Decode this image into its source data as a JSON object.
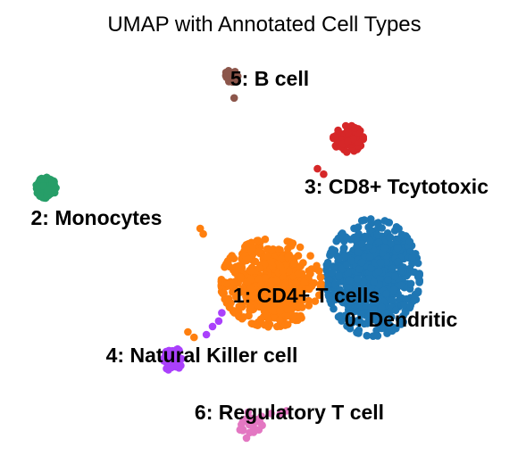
{
  "chart_data": {
    "type": "scatter",
    "title": "UMAP with Annotated Cell Types",
    "xlabel": "",
    "ylabel": "",
    "grid": false,
    "axes_visible": false,
    "legend": "on data",
    "xlim": [
      -6.0,
      10.5
    ],
    "ylim": [
      -4.5,
      10.0
    ],
    "clusters": [
      {
        "id": "0",
        "label": "0: Dendritic",
        "color": "#1f77b4",
        "center": [
          5.8,
          1.7
        ],
        "spread": [
          1.4,
          2.0
        ],
        "count": 700
      },
      {
        "id": "1",
        "label": "1: CD4+ T cells",
        "color": "#ff7f0e",
        "center": [
          2.5,
          1.5
        ],
        "spread": [
          1.5,
          1.5
        ],
        "count": 600
      },
      {
        "id": "2",
        "label": "2: Monocytes",
        "color": "#279e68",
        "center": [
          -4.8,
          5.0
        ],
        "spread": [
          0.3,
          0.35
        ],
        "count": 150
      },
      {
        "id": "3",
        "label": "3: CD8+ Tcytotoxic",
        "color": "#d62728",
        "center": [
          5.0,
          6.8
        ],
        "spread": [
          0.45,
          0.45
        ],
        "count": 110
      },
      {
        "id": "4",
        "label": "4: Natural Killer cell",
        "color": "#aa40fc",
        "center": [
          -0.7,
          -1.3
        ],
        "spread": [
          0.3,
          0.4
        ],
        "count": 80
      },
      {
        "id": "5",
        "label": "5: B cell",
        "color": "#8c564b",
        "center": [
          1.2,
          9.1
        ],
        "spread": [
          0.2,
          0.2
        ],
        "count": 30
      },
      {
        "id": "6",
        "label": "6: Regulatory T cell",
        "color": "#e377c2",
        "center": [
          1.8,
          -3.6
        ],
        "spread": [
          0.4,
          0.4
        ],
        "count": 20
      }
    ]
  }
}
